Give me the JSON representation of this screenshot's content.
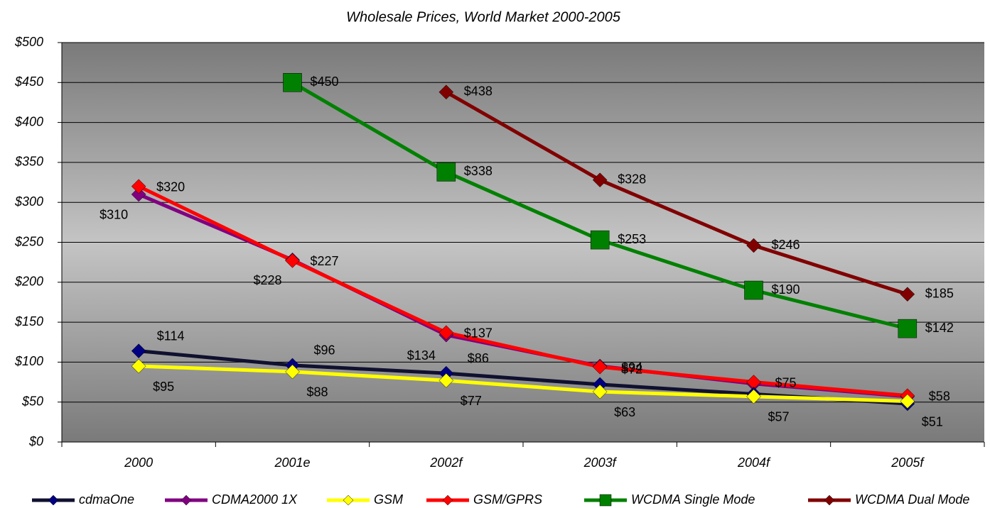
{
  "chart_data": {
    "type": "line",
    "title": "Wholesale Prices, World Market 2000-2005",
    "categories": [
      "2000",
      "2001e",
      "2002f",
      "2003f",
      "2004f",
      "2005f"
    ],
    "ylim": [
      0,
      500
    ],
    "yticks": [
      {
        "value": 0,
        "label": "$0"
      },
      {
        "value": 50,
        "label": "$50"
      },
      {
        "value": 100,
        "label": "$100"
      },
      {
        "value": 150,
        "label": "$150"
      },
      {
        "value": 200,
        "label": "$200"
      },
      {
        "value": 250,
        "label": "$250"
      },
      {
        "value": 300,
        "label": "$300"
      },
      {
        "value": 350,
        "label": "$350"
      },
      {
        "value": 400,
        "label": "$400"
      },
      {
        "value": 450,
        "label": "$450"
      },
      {
        "value": 500,
        "label": "$500"
      }
    ],
    "grid": true,
    "series": [
      {
        "name": "cdmaOne",
        "color": "#000080",
        "marker": "diamond",
        "values": [
          114,
          96,
          86,
          72,
          60,
          48
        ],
        "value_labels": [
          "$114",
          "$96",
          "$86",
          "$72",
          null,
          null
        ]
      },
      {
        "name": "CDMA2000 1X",
        "color": "#800080",
        "marker": "diamond",
        "values": [
          310,
          228,
          134,
          95,
          73,
          57
        ],
        "value_labels": [
          "$310",
          "$228",
          "$134",
          null,
          null,
          null
        ]
      },
      {
        "name": "GSM",
        "color": "#ffff00",
        "marker": "diamond",
        "values": [
          95,
          88,
          77,
          63,
          57,
          51
        ],
        "value_labels": [
          "$95",
          "$88",
          "$77",
          "$63",
          "$57",
          "$51"
        ]
      },
      {
        "name": "GSM/GPRS",
        "color": "#ff0000",
        "marker": "diamond",
        "values": [
          320,
          227,
          137,
          94,
          75,
          58
        ],
        "value_labels": [
          "$320",
          "$227",
          "$137",
          "$94",
          "$75",
          "$58"
        ]
      },
      {
        "name": "WCDMA Single Mode",
        "color": "#008000",
        "marker": "square",
        "values": [
          null,
          450,
          338,
          253,
          190,
          142
        ],
        "value_labels": [
          null,
          "$450",
          "$338",
          "$253",
          "$190",
          "$142"
        ]
      },
      {
        "name": "WCDMA Dual Mode",
        "color": "#800000",
        "marker": "diamond",
        "values": [
          null,
          null,
          438,
          328,
          246,
          185
        ],
        "value_labels": [
          null,
          null,
          "$438",
          "$328",
          "$246",
          "$185"
        ]
      }
    ]
  }
}
